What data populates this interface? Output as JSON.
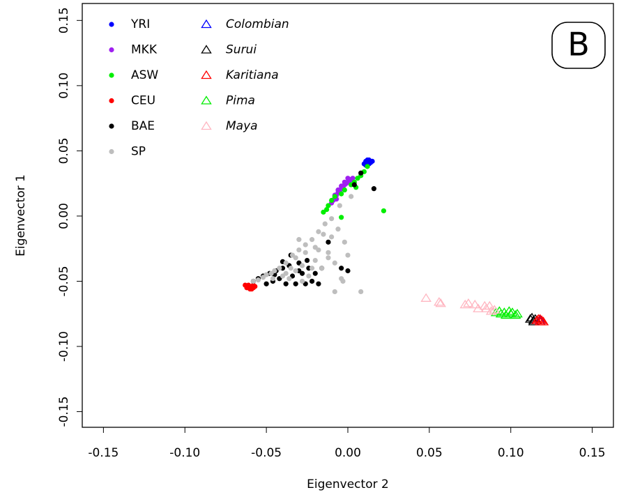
{
  "chart_data": {
    "type": "scatter",
    "xlabel": "Eigenvector 2",
    "ylabel": "Eigenvector 1",
    "annotation": "B",
    "xlim": [
      -0.163,
      0.163
    ],
    "ylim": [
      -0.162,
      0.163
    ],
    "xticks": [
      -0.15,
      {
        "value": -0.1,
        "label": "-0.10"
      },
      -0.05,
      {
        "value": 0,
        "label": "0.00"
      },
      0.05,
      {
        "value": 0.1,
        "label": "0.10"
      },
      0.15
    ],
    "yticks": [
      -0.15,
      {
        "value": -0.1,
        "label": "-0.10"
      },
      -0.05,
      {
        "value": 0,
        "label": "0.00"
      },
      0.05,
      {
        "value": 0.1,
        "label": "0.10"
      },
      0.15
    ],
    "grid": false,
    "legend": "upper left",
    "series": [
      {
        "name": "YRI",
        "color": "#0000ff",
        "marker": "circle",
        "x": [
          0.01,
          0.011,
          0.012,
          0.013,
          0.014,
          0.015,
          0.011,
          0.013,
          0.012,
          0.014
        ],
        "values": [
          0.04,
          0.042,
          0.041,
          0.043,
          0.042,
          0.042,
          0.039,
          0.04,
          0.043,
          0.041
        ]
      },
      {
        "name": "MKK",
        "color": "#a020f0",
        "marker": "circle",
        "x": [
          -0.01,
          -0.009,
          -0.008,
          -0.007,
          -0.006,
          -0.005,
          -0.004,
          -0.003,
          -0.002,
          -0.001,
          0.0,
          0.001,
          0.002,
          0.003,
          -0.008,
          -0.006,
          -0.004,
          -0.002,
          0.0,
          -0.007
        ],
        "values": [
          0.01,
          0.012,
          0.014,
          0.016,
          0.018,
          0.019,
          0.021,
          0.022,
          0.024,
          0.025,
          0.026,
          0.027,
          0.028,
          0.029,
          0.016,
          0.02,
          0.023,
          0.026,
          0.029,
          0.013
        ]
      },
      {
        "name": "ASW",
        "color": "#00ee00",
        "marker": "circle",
        "x": [
          -0.015,
          -0.013,
          -0.012,
          -0.01,
          -0.008,
          -0.004,
          -0.002,
          0.002,
          0.004,
          0.006,
          0.008,
          0.01,
          0.012,
          0.022,
          -0.004,
          0.005
        ],
        "values": [
          0.003,
          0.005,
          0.008,
          0.012,
          0.015,
          0.017,
          0.02,
          0.024,
          0.026,
          0.029,
          0.031,
          0.034,
          0.038,
          0.004,
          -0.001,
          0.022
        ]
      },
      {
        "name": "CEU",
        "color": "#ff0000",
        "marker": "circle",
        "x": [
          -0.063,
          -0.062,
          -0.061,
          -0.06,
          -0.059,
          -0.058,
          -0.057,
          -0.061,
          -0.059,
          -0.06,
          -0.062,
          -0.058
        ],
        "values": [
          -0.053,
          -0.054,
          -0.055,
          -0.054,
          -0.056,
          -0.055,
          -0.054,
          -0.053,
          -0.054,
          -0.056,
          -0.055,
          -0.053
        ]
      },
      {
        "name": "BAE",
        "color": "#000000",
        "marker": "circle",
        "x": [
          -0.058,
          -0.055,
          -0.052,
          -0.05,
          -0.048,
          -0.046,
          -0.044,
          -0.042,
          -0.04,
          -0.038,
          -0.036,
          -0.034,
          -0.032,
          -0.03,
          -0.028,
          -0.026,
          -0.024,
          -0.022,
          -0.02,
          -0.018,
          -0.016,
          -0.045,
          -0.035,
          -0.025,
          -0.03,
          0.0,
          -0.004,
          0.016,
          0.008,
          0.004,
          -0.012,
          -0.04
        ],
        "values": [
          -0.05,
          -0.048,
          -0.046,
          -0.052,
          -0.044,
          -0.05,
          -0.042,
          -0.048,
          -0.04,
          -0.052,
          -0.038,
          -0.046,
          -0.052,
          -0.036,
          -0.044,
          -0.052,
          -0.04,
          -0.05,
          -0.044,
          -0.052,
          -0.04,
          -0.045,
          -0.03,
          -0.034,
          -0.042,
          -0.042,
          -0.04,
          0.021,
          0.033,
          0.024,
          -0.02,
          -0.035
        ]
      },
      {
        "name": "SP",
        "color": "#bebebe",
        "marker": "circle",
        "x": [
          -0.058,
          -0.055,
          -0.052,
          -0.05,
          -0.047,
          -0.045,
          -0.042,
          -0.04,
          -0.038,
          -0.036,
          -0.034,
          -0.032,
          -0.03,
          -0.028,
          -0.026,
          -0.024,
          -0.022,
          -0.02,
          -0.018,
          -0.016,
          -0.014,
          -0.012,
          -0.01,
          -0.008,
          -0.006,
          -0.004,
          -0.002,
          0.0,
          0.002,
          0.008,
          -0.008,
          -0.046,
          -0.038,
          -0.032,
          -0.026,
          -0.02,
          -0.015,
          -0.01,
          -0.028,
          -0.022,
          -0.018,
          -0.012,
          -0.035,
          -0.03,
          -0.005,
          -0.003
        ],
        "values": [
          -0.05,
          -0.049,
          -0.047,
          -0.045,
          -0.044,
          -0.042,
          -0.04,
          -0.046,
          -0.036,
          -0.048,
          -0.03,
          -0.042,
          -0.026,
          -0.038,
          -0.022,
          -0.046,
          -0.018,
          -0.034,
          -0.012,
          -0.04,
          -0.006,
          -0.028,
          -0.002,
          -0.036,
          -0.01,
          -0.048,
          -0.02,
          -0.03,
          0.015,
          -0.058,
          -0.058,
          -0.048,
          -0.044,
          -0.032,
          -0.028,
          -0.024,
          -0.014,
          -0.016,
          -0.05,
          -0.04,
          -0.026,
          -0.032,
          -0.04,
          -0.018,
          0.008,
          -0.05
        ]
      },
      {
        "name": "Colombian",
        "color": "#0000ff",
        "marker": "triangle",
        "x": [
          0.116,
          0.118
        ],
        "values": [
          -0.08,
          -0.08
        ]
      },
      {
        "name": "Surui",
        "color": "#000000",
        "marker": "triangle",
        "x": [
          0.112,
          0.113,
          0.114,
          0.115,
          0.116,
          0.114
        ],
        "values": [
          -0.079,
          -0.078,
          -0.08,
          -0.079,
          -0.08,
          -0.081
        ]
      },
      {
        "name": "Karitiana",
        "color": "#ff0000",
        "marker": "triangle",
        "x": [
          0.116,
          0.117,
          0.118,
          0.119,
          0.12,
          0.118
        ],
        "values": [
          -0.08,
          -0.079,
          -0.081,
          -0.08,
          -0.081,
          -0.079
        ]
      },
      {
        "name": "Pima",
        "color": "#00ee00",
        "marker": "triangle",
        "x": [
          0.091,
          0.093,
          0.094,
          0.096,
          0.097,
          0.099,
          0.1,
          0.101,
          0.103,
          0.104
        ],
        "values": [
          -0.074,
          -0.073,
          -0.075,
          -0.074,
          -0.076,
          -0.073,
          -0.075,
          -0.074,
          -0.076,
          -0.075
        ]
      },
      {
        "name": "Maya",
        "color": "#ffb6c1",
        "marker": "triangle",
        "x": [
          0.048,
          0.056,
          0.057,
          0.072,
          0.074,
          0.078,
          0.08,
          0.084,
          0.085,
          0.087,
          0.088,
          0.09
        ],
        "values": [
          -0.063,
          -0.066,
          -0.067,
          -0.068,
          -0.067,
          -0.068,
          -0.071,
          -0.069,
          -0.071,
          -0.069,
          -0.073,
          -0.072
        ]
      }
    ]
  }
}
